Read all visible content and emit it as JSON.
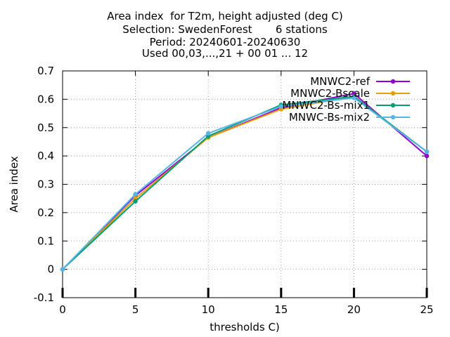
{
  "chart_data": {
    "type": "line",
    "title_lines": [
      "Area index  for T2m, height adjusted (deg C)",
      "Selection: SwedenForest       6 stations",
      "Period: 20240601-20240630",
      "Used 00,03,...,21 + 00 01 ... 12"
    ],
    "xlabel": "thresholds C)",
    "ylabel": "Area index",
    "x": [
      0,
      5,
      10,
      15,
      20,
      25
    ],
    "xticks": [
      "0",
      "5",
      "10",
      "15",
      "20",
      "25"
    ],
    "yticks": [
      "-0.1",
      "0",
      "0.1",
      "0.2",
      "0.3",
      "0.4",
      "0.5",
      "0.6",
      "0.7"
    ],
    "xlim": [
      0,
      25
    ],
    "ylim": [
      -0.1,
      0.7
    ],
    "grid": true,
    "legend_position": "top-right",
    "series": [
      {
        "name": "MNWC2-ref",
        "color": "#9400d3",
        "values": [
          0,
          0.26,
          0.465,
          0.57,
          0.62,
          0.4
        ]
      },
      {
        "name": "MNWC2-Bscale",
        "color": "#e69f00",
        "values": [
          0,
          0.25,
          0.465,
          0.565,
          0.61,
          0.415
        ]
      },
      {
        "name": "MNWC2-Bs-mix1",
        "color": "#009e73",
        "values": [
          0,
          0.24,
          0.47,
          0.58,
          0.61,
          0.415
        ]
      },
      {
        "name": "MNWC-Bs-mix2",
        "color": "#56b4e9",
        "values": [
          0,
          0.265,
          0.48,
          0.575,
          0.605,
          0.415
        ]
      }
    ]
  }
}
